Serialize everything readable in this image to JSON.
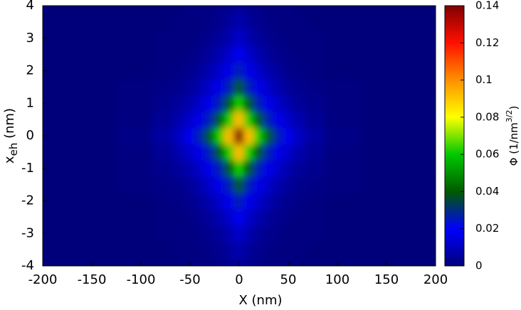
{
  "chart_data": {
    "type": "heatmap",
    "xlabel": "X (nm)",
    "ylabel": {
      "base": "x",
      "sub": "eh",
      "unit": " (nm)"
    },
    "colorbar_label": {
      "base": "Φ  (1/nm",
      "sup": "3/2",
      "end": ")"
    },
    "x": [
      -200,
      -150,
      -100,
      -75,
      -60,
      -50,
      -40,
      -30,
      -20,
      -10,
      0,
      10,
      20,
      30,
      40,
      50,
      60,
      75,
      100,
      150,
      200
    ],
    "y": [
      -4,
      -3.5,
      -3,
      -2.5,
      -2,
      -1.5,
      -1,
      -0.5,
      0,
      0.5,
      1,
      1.5,
      2,
      2.5,
      3,
      3.5,
      4
    ],
    "values": [
      [
        0,
        0,
        0,
        0,
        0,
        0.001,
        0.001,
        0.001,
        0.002,
        0.003,
        0.005,
        0.003,
        0.002,
        0.001,
        0.001,
        0.001,
        0,
        0,
        0,
        0,
        0
      ],
      [
        0,
        0,
        0,
        0,
        0.001,
        0.001,
        0.001,
        0.002,
        0.003,
        0.005,
        0.008,
        0.005,
        0.003,
        0.002,
        0.001,
        0.001,
        0.001,
        0,
        0,
        0,
        0
      ],
      [
        0,
        0,
        0,
        0.001,
        0.001,
        0.001,
        0.002,
        0.003,
        0.005,
        0.008,
        0.012,
        0.008,
        0.005,
        0.003,
        0.002,
        0.001,
        0.001,
        0.001,
        0,
        0,
        0
      ],
      [
        0,
        0,
        0,
        0.001,
        0.001,
        0.002,
        0.003,
        0.005,
        0.008,
        0.012,
        0.018,
        0.012,
        0.008,
        0.005,
        0.003,
        0.002,
        0.001,
        0.001,
        0,
        0,
        0
      ],
      [
        0,
        0,
        0,
        0.001,
        0.002,
        0.003,
        0.005,
        0.008,
        0.012,
        0.017,
        0.026,
        0.017,
        0.012,
        0.008,
        0.005,
        0.003,
        0.002,
        0.001,
        0,
        0,
        0
      ],
      [
        0,
        0,
        0.001,
        0.002,
        0.003,
        0.005,
        0.008,
        0.012,
        0.017,
        0.026,
        0.04,
        0.026,
        0.017,
        0.012,
        0.008,
        0.005,
        0.003,
        0.002,
        0.001,
        0,
        0
      ],
      [
        0,
        0,
        0.001,
        0.003,
        0.005,
        0.008,
        0.012,
        0.017,
        0.026,
        0.04,
        0.061,
        0.04,
        0.026,
        0.017,
        0.012,
        0.008,
        0.005,
        0.003,
        0.001,
        0,
        0
      ],
      [
        0,
        0,
        0.001,
        0.004,
        0.008,
        0.012,
        0.017,
        0.026,
        0.04,
        0.061,
        0.092,
        0.061,
        0.04,
        0.026,
        0.017,
        0.012,
        0.008,
        0.004,
        0.001,
        0,
        0
      ],
      [
        0,
        0,
        0.002,
        0.006,
        0.011,
        0.018,
        0.026,
        0.04,
        0.061,
        0.092,
        0.14,
        0.092,
        0.061,
        0.04,
        0.026,
        0.018,
        0.011,
        0.006,
        0.002,
        0,
        0
      ],
      [
        0,
        0,
        0.001,
        0.004,
        0.008,
        0.012,
        0.017,
        0.026,
        0.04,
        0.061,
        0.092,
        0.061,
        0.04,
        0.026,
        0.017,
        0.012,
        0.008,
        0.004,
        0.001,
        0,
        0
      ],
      [
        0,
        0,
        0.001,
        0.003,
        0.005,
        0.008,
        0.012,
        0.017,
        0.026,
        0.04,
        0.061,
        0.04,
        0.026,
        0.017,
        0.012,
        0.008,
        0.005,
        0.003,
        0.001,
        0,
        0
      ],
      [
        0,
        0,
        0.001,
        0.002,
        0.003,
        0.005,
        0.008,
        0.012,
        0.017,
        0.026,
        0.04,
        0.026,
        0.017,
        0.012,
        0.008,
        0.005,
        0.003,
        0.002,
        0.001,
        0,
        0
      ],
      [
        0,
        0,
        0,
        0.001,
        0.002,
        0.003,
        0.005,
        0.008,
        0.012,
        0.017,
        0.026,
        0.017,
        0.012,
        0.008,
        0.005,
        0.003,
        0.002,
        0.001,
        0,
        0,
        0
      ],
      [
        0,
        0,
        0,
        0.001,
        0.001,
        0.002,
        0.003,
        0.005,
        0.008,
        0.012,
        0.018,
        0.012,
        0.008,
        0.005,
        0.003,
        0.002,
        0.001,
        0.001,
        0,
        0,
        0
      ],
      [
        0,
        0,
        0,
        0.001,
        0.001,
        0.001,
        0.002,
        0.003,
        0.005,
        0.008,
        0.012,
        0.008,
        0.005,
        0.003,
        0.002,
        0.001,
        0.001,
        0.001,
        0,
        0,
        0
      ],
      [
        0,
        0,
        0,
        0,
        0.001,
        0.001,
        0.001,
        0.002,
        0.003,
        0.005,
        0.008,
        0.005,
        0.003,
        0.002,
        0.001,
        0.001,
        0.001,
        0,
        0,
        0,
        0
      ],
      [
        0,
        0,
        0,
        0,
        0,
        0.001,
        0.001,
        0.001,
        0.002,
        0.003,
        0.005,
        0.003,
        0.002,
        0.001,
        0.001,
        0.001,
        0,
        0,
        0,
        0,
        0
      ]
    ],
    "xlim": [
      -200,
      200
    ],
    "ylim": [
      -4,
      4
    ],
    "xticks": [
      -200,
      -150,
      -100,
      -50,
      0,
      50,
      100,
      150,
      200
    ],
    "yticks": [
      -4,
      -3,
      -2,
      -1,
      0,
      1,
      2,
      3,
      4
    ],
    "clim": [
      0,
      0.14
    ],
    "cticks": [
      0,
      0.02,
      0.04,
      0.06,
      0.08,
      0.1,
      0.12,
      0.14
    ],
    "colormap": [
      [
        0,
        "#00007a"
      ],
      [
        0.02,
        "#0000ff"
      ],
      [
        0.04,
        "#005a00"
      ],
      [
        0.06,
        "#00c800"
      ],
      [
        0.08,
        "#ffff00"
      ],
      [
        0.1,
        "#ff9000"
      ],
      [
        0.12,
        "#ff1000"
      ],
      [
        0.14,
        "#800000"
      ]
    ]
  }
}
